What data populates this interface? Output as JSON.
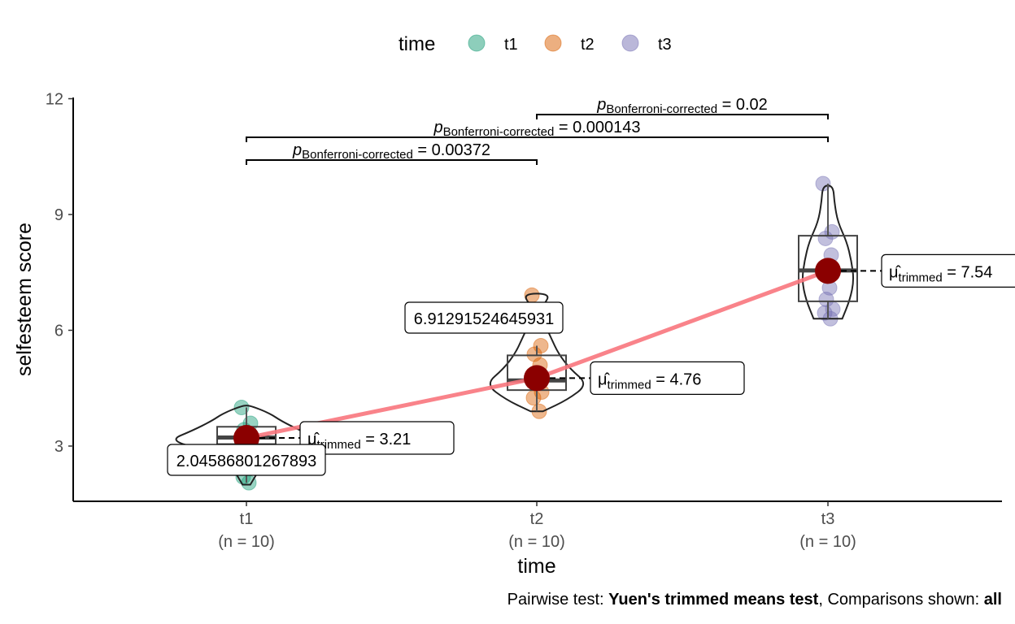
{
  "chart_data": {
    "type": "violin-box-scatter",
    "xlabel": "time",
    "ylabel": "selfesteem score",
    "ylim": [
      1.5,
      12
    ],
    "yticks": [
      3,
      6,
      9,
      12
    ],
    "categories": [
      "t1",
      "t2",
      "t3"
    ],
    "category_n_labels": [
      "(n = 10)",
      "(n = 10)",
      "(n = 10)"
    ],
    "colors": {
      "t1": "#1B9E77",
      "t2": "#D95F02",
      "t3": "#7570B3",
      "mean_point": "#8B0000",
      "trend_line": "#F8767D"
    },
    "legend": {
      "title": "time",
      "position": "top",
      "items": [
        "t1",
        "t2",
        "t3"
      ]
    },
    "groups": [
      {
        "name": "t1",
        "points": [
          4.0,
          3.59,
          3.42,
          3.3,
          3.21,
          3.15,
          3.05,
          2.95,
          2.2,
          2.05
        ],
        "box": {
          "q1": 3.05,
          "median": 3.22,
          "q3": 3.5,
          "whisker_low": 2.05,
          "whisker_high": 4.0
        },
        "violin": [
          [
            2.0,
            0.05
          ],
          [
            2.3,
            0.14
          ],
          [
            2.6,
            0.22
          ],
          [
            2.9,
            0.55
          ],
          [
            3.15,
            1.0
          ],
          [
            3.4,
            0.7
          ],
          [
            3.65,
            0.45
          ],
          [
            3.85,
            0.3
          ],
          [
            4.05,
            0.05
          ]
        ],
        "trimmed_mean": 3.21,
        "mean_label": "μ̂trimmed = 3.21",
        "outlier_label": "2.04586801267893"
      },
      {
        "name": "t2",
        "points": [
          6.91,
          5.6,
          5.38,
          5.1,
          4.85,
          4.73,
          4.62,
          4.4,
          4.25,
          3.9
        ],
        "box": {
          "q1": 4.45,
          "median": 4.7,
          "q3": 5.35,
          "whisker_low": 3.9,
          "whisker_high": 5.6
        },
        "violin": [
          [
            3.9,
            0.12
          ],
          [
            4.2,
            0.6
          ],
          [
            4.6,
            1.0
          ],
          [
            5.0,
            0.65
          ],
          [
            5.4,
            0.42
          ],
          [
            5.8,
            0.28
          ],
          [
            6.2,
            0.14
          ],
          [
            6.6,
            0.1
          ],
          [
            6.95,
            0.28
          ]
        ],
        "trimmed_mean": 4.76,
        "mean_label": "μ̂trimmed = 4.76",
        "outlier_label": "6.91291524645931"
      },
      {
        "name": "t3",
        "points": [
          9.8,
          8.55,
          8.38,
          7.95,
          7.55,
          7.1,
          6.8,
          6.55,
          6.45,
          6.3
        ],
        "box": {
          "q1": 6.75,
          "median": 7.55,
          "q3": 8.45,
          "whisker_low": 6.3,
          "whisker_high": 9.8
        },
        "violin": [
          [
            6.3,
            0.55
          ],
          [
            6.8,
            0.85
          ],
          [
            7.3,
            1.0
          ],
          [
            7.8,
            0.9
          ],
          [
            8.3,
            0.72
          ],
          [
            8.8,
            0.38
          ],
          [
            9.3,
            0.25
          ],
          [
            9.75,
            0.2
          ]
        ],
        "trimmed_mean": 7.54,
        "mean_label": "μ̂trimmed = 7.54",
        "outlier_label": ""
      }
    ],
    "comparisons": [
      {
        "from": "t1",
        "to": "t2",
        "y": 10.45,
        "p_label": "pBonferroni-corrected = 0.00372",
        "p_value": "0.00372"
      },
      {
        "from": "t1",
        "to": "t3",
        "y": 11.0,
        "p_label": "pBonferroni-corrected = 0.000143",
        "p_value": "0.000143"
      },
      {
        "from": "t2",
        "to": "t3",
        "y": 11.55,
        "p_label": "pBonferroni-corrected = 0.02",
        "p_value": "0.02"
      }
    ],
    "caption": {
      "prefix": "Pairwise test: ",
      "test": "Yuen's trimmed means test",
      "middle": ", Comparisons shown: ",
      "shown": "all"
    }
  }
}
